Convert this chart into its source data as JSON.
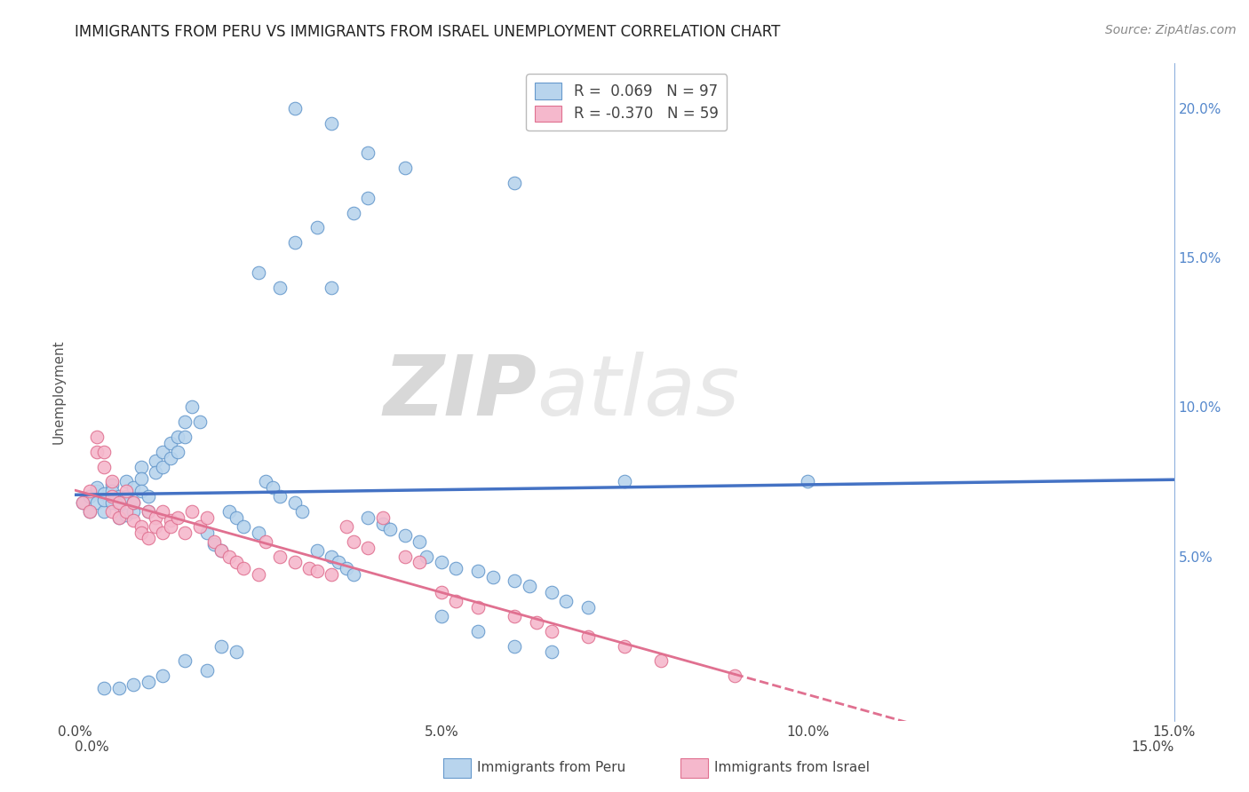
{
  "title": "IMMIGRANTS FROM PERU VS IMMIGRANTS FROM ISRAEL UNEMPLOYMENT CORRELATION CHART",
  "source": "Source: ZipAtlas.com",
  "ylabel": "Unemployment",
  "xlim": [
    0.0,
    0.15
  ],
  "ylim": [
    -0.005,
    0.215
  ],
  "xticks": [
    0.0,
    0.05,
    0.1,
    0.15
  ],
  "xtick_labels": [
    "0.0%",
    "5.0%",
    "10.0%",
    "15.0%"
  ],
  "right_yticks": [
    0.05,
    0.1,
    0.15,
    0.2
  ],
  "right_ytick_labels": [
    "5.0%",
    "10.0%",
    "15.0%",
    "20.0%"
  ],
  "peru_color": "#b8d4ed",
  "peru_edge_color": "#6699cc",
  "israel_color": "#f5b8cc",
  "israel_edge_color": "#e07090",
  "peru_line_color": "#4472c4",
  "israel_line_color": "#e07090",
  "peru_R": 0.069,
  "peru_N": 97,
  "israel_R": -0.37,
  "israel_N": 59,
  "legend_label_peru": "Immigrants from Peru",
  "legend_label_israel": "Immigrants from Israel",
  "watermark_zip": "ZIP",
  "watermark_atlas": "atlas",
  "background_color": "#ffffff",
  "peru_x": [
    0.001,
    0.002,
    0.002,
    0.003,
    0.003,
    0.003,
    0.004,
    0.004,
    0.004,
    0.005,
    0.005,
    0.005,
    0.006,
    0.006,
    0.006,
    0.007,
    0.007,
    0.007,
    0.008,
    0.008,
    0.008,
    0.009,
    0.009,
    0.009,
    0.01,
    0.01,
    0.011,
    0.011,
    0.012,
    0.012,
    0.013,
    0.013,
    0.014,
    0.014,
    0.015,
    0.015,
    0.016,
    0.017,
    0.018,
    0.019,
    0.02,
    0.021,
    0.022,
    0.023,
    0.025,
    0.026,
    0.027,
    0.028,
    0.03,
    0.031,
    0.033,
    0.035,
    0.036,
    0.037,
    0.038,
    0.04,
    0.042,
    0.043,
    0.045,
    0.047,
    0.048,
    0.05,
    0.052,
    0.055,
    0.057,
    0.06,
    0.062,
    0.065,
    0.067,
    0.07,
    0.025,
    0.028,
    0.03,
    0.033,
    0.035,
    0.038,
    0.04,
    0.02,
    0.022,
    0.015,
    0.018,
    0.012,
    0.01,
    0.008,
    0.006,
    0.004,
    0.05,
    0.055,
    0.06,
    0.065,
    0.03,
    0.035,
    0.04,
    0.045,
    0.06,
    0.075,
    0.1
  ],
  "peru_y": [
    0.068,
    0.07,
    0.065,
    0.072,
    0.068,
    0.073,
    0.065,
    0.071,
    0.069,
    0.074,
    0.068,
    0.072,
    0.063,
    0.07,
    0.067,
    0.075,
    0.064,
    0.07,
    0.065,
    0.073,
    0.068,
    0.08,
    0.076,
    0.072,
    0.065,
    0.07,
    0.082,
    0.078,
    0.085,
    0.08,
    0.088,
    0.083,
    0.09,
    0.085,
    0.095,
    0.09,
    0.1,
    0.095,
    0.058,
    0.054,
    0.052,
    0.065,
    0.063,
    0.06,
    0.058,
    0.075,
    0.073,
    0.07,
    0.068,
    0.065,
    0.052,
    0.05,
    0.048,
    0.046,
    0.044,
    0.063,
    0.061,
    0.059,
    0.057,
    0.055,
    0.05,
    0.048,
    0.046,
    0.045,
    0.043,
    0.042,
    0.04,
    0.038,
    0.035,
    0.033,
    0.145,
    0.14,
    0.155,
    0.16,
    0.14,
    0.165,
    0.17,
    0.02,
    0.018,
    0.015,
    0.012,
    0.01,
    0.008,
    0.007,
    0.006,
    0.006,
    0.03,
    0.025,
    0.02,
    0.018,
    0.2,
    0.195,
    0.185,
    0.18,
    0.175,
    0.075,
    0.075
  ],
  "israel_x": [
    0.001,
    0.002,
    0.002,
    0.003,
    0.003,
    0.004,
    0.004,
    0.005,
    0.005,
    0.005,
    0.006,
    0.006,
    0.007,
    0.007,
    0.008,
    0.008,
    0.009,
    0.009,
    0.01,
    0.01,
    0.011,
    0.011,
    0.012,
    0.012,
    0.013,
    0.013,
    0.014,
    0.015,
    0.016,
    0.017,
    0.018,
    0.019,
    0.02,
    0.021,
    0.022,
    0.023,
    0.025,
    0.026,
    0.028,
    0.03,
    0.032,
    0.033,
    0.035,
    0.037,
    0.038,
    0.04,
    0.042,
    0.045,
    0.047,
    0.05,
    0.052,
    0.055,
    0.06,
    0.063,
    0.065,
    0.07,
    0.075,
    0.08,
    0.09
  ],
  "israel_y": [
    0.068,
    0.072,
    0.065,
    0.09,
    0.085,
    0.085,
    0.08,
    0.075,
    0.07,
    0.065,
    0.068,
    0.063,
    0.072,
    0.065,
    0.068,
    0.062,
    0.06,
    0.058,
    0.056,
    0.065,
    0.063,
    0.06,
    0.058,
    0.065,
    0.062,
    0.06,
    0.063,
    0.058,
    0.065,
    0.06,
    0.063,
    0.055,
    0.052,
    0.05,
    0.048,
    0.046,
    0.044,
    0.055,
    0.05,
    0.048,
    0.046,
    0.045,
    0.044,
    0.06,
    0.055,
    0.053,
    0.063,
    0.05,
    0.048,
    0.038,
    0.035,
    0.033,
    0.03,
    0.028,
    0.025,
    0.023,
    0.02,
    0.015,
    0.01
  ]
}
